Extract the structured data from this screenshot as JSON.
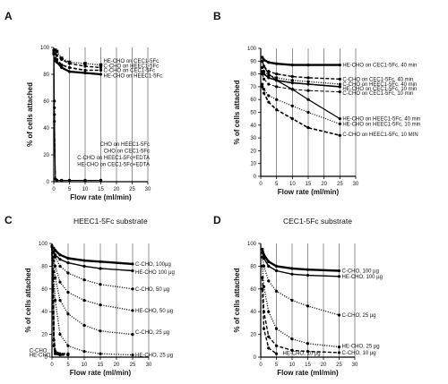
{
  "figure": {
    "panels": [
      "A",
      "B",
      "C",
      "D"
    ]
  },
  "chart_data": [
    {
      "id": "A",
      "type": "line",
      "letter": "A",
      "title": "",
      "xlabel": "Flow rate (ml/min)",
      "ylabel": "% of cells attached",
      "xlim": [
        0,
        30
      ],
      "ylim": [
        0,
        100
      ],
      "xticks": [
        0,
        5,
        10,
        15,
        20,
        25,
        30
      ],
      "yticks": [
        0,
        20,
        40,
        60,
        80,
        100
      ],
      "grid": "vertical",
      "series": [
        {
          "name": "HE-CHO on CEC1-5Fc",
          "style": "dotted",
          "marker": "square",
          "width": 1.4,
          "x": [
            0.5,
            1,
            2.5,
            5,
            10,
            15
          ],
          "y": [
            98,
            97,
            92,
            89,
            88,
            87
          ],
          "label_y": 90
        },
        {
          "name": "C-CHO on HEEC1-5Fc",
          "style": "dashed",
          "marker": "circle",
          "width": 1.4,
          "x": [
            0.5,
            1,
            2.5,
            5,
            10,
            15
          ],
          "y": [
            95,
            94,
            91,
            88,
            86,
            85
          ],
          "label_y": 86.5
        },
        {
          "name": "C-CHO on CEC1-5Fc",
          "style": "dashed",
          "marker": "circle",
          "width": 1.6,
          "x": [
            0.5,
            1,
            2.5,
            5,
            10,
            15
          ],
          "y": [
            92,
            91,
            87,
            85,
            83,
            83
          ],
          "label_y": 83
        },
        {
          "name": "HE-CHO on HEEC1-5Fc",
          "style": "solid",
          "marker": "circle",
          "width": 2.2,
          "x": [
            0.5,
            1,
            2.5,
            5,
            10,
            15
          ],
          "y": [
            90,
            89,
            85,
            82,
            81,
            80
          ],
          "label_y": 79
        },
        {
          "name": "CHO on HEEC1-5Fc",
          "style": "dotted",
          "marker": "circle",
          "width": 1,
          "x": [
            0,
            0.2,
            0.5,
            1,
            2.5,
            5,
            10,
            15
          ],
          "y": [
            98,
            60,
            2,
            1,
            1,
            1,
            1,
            1
          ],
          "label_y": 28
        },
        {
          "name": "CHO on CEC1-5Fc",
          "style": "dashed",
          "marker": "circle",
          "width": 1,
          "x": [
            0,
            0.2,
            0.5,
            1,
            2.5,
            5,
            10,
            15
          ],
          "y": [
            97,
            55,
            2,
            1,
            1,
            1,
            1,
            1
          ],
          "label_y": 23
        },
        {
          "name": "C-CHO on HEEC1-5Fc+EDTA",
          "style": "dashed",
          "marker": "circle",
          "width": 1,
          "x": [
            0,
            0.2,
            0.5,
            1,
            2.5,
            5,
            10,
            15
          ],
          "y": [
            96,
            50,
            2,
            1,
            1,
            1,
            1,
            1
          ],
          "label_y": 18
        },
        {
          "name": "HE-CHO on CEC1-5Fc+EDTA",
          "style": "solid",
          "marker": "circle",
          "width": 1,
          "x": [
            0,
            0.2,
            0.5,
            1,
            2.5,
            5,
            10,
            15
          ],
          "y": [
            95,
            45,
            2,
            1,
            1,
            1,
            1,
            1
          ],
          "label_y": 13
        }
      ]
    },
    {
      "id": "B",
      "type": "line",
      "letter": "B",
      "title": "",
      "xlabel": "Flow rate (ml/min)",
      "ylabel": "% of cells attached",
      "xlim": [
        0,
        30
      ],
      "ylim": [
        0,
        100
      ],
      "xticks": [
        0,
        5,
        10,
        15,
        20,
        25,
        30
      ],
      "yticks": [
        0,
        10,
        20,
        30,
        40,
        50,
        60,
        70,
        80,
        90,
        100
      ],
      "grid": "vertical",
      "series": [
        {
          "name": "HE-CHO on CEC1-5Fc, 40 min",
          "style": "solid",
          "marker": "circle",
          "width": 2.4,
          "x": [
            0.5,
            1,
            2.5,
            5,
            10,
            15,
            25
          ],
          "y": [
            93,
            91,
            89,
            88,
            87,
            87,
            87
          ],
          "label_y": 87
        },
        {
          "name": "C-CHO on CEC1-5Fc, 40 min",
          "style": "dashed",
          "marker": "circle",
          "width": 1.4,
          "x": [
            0.5,
            1,
            2.5,
            5,
            10,
            15,
            25
          ],
          "y": [
            90,
            86,
            82,
            80,
            78,
            77,
            76
          ],
          "label_y": 76
        },
        {
          "name": "C-CHO on HEEC1-5Fc, 40 min",
          "style": "dotted",
          "marker": "circle",
          "width": 1.4,
          "x": [
            0.5,
            1,
            2.5,
            5,
            10,
            15,
            25
          ],
          "y": [
            85,
            82,
            79,
            77,
            75,
            74,
            72
          ],
          "label_y": 72
        },
        {
          "name": "HE-CHO on CEC1-5Fc, 10 min",
          "style": "solid",
          "marker": "circle",
          "width": 1.6,
          "x": [
            0.5,
            1,
            2.5,
            5,
            10,
            15,
            25
          ],
          "y": [
            82,
            80,
            77,
            75,
            73,
            72,
            70
          ],
          "label_y": 68.5
        },
        {
          "name": "C-CHO on CEC1-5Fc, 10 min",
          "style": "dashed",
          "marker": "circle",
          "width": 1,
          "x": [
            0.5,
            1,
            2.5,
            5,
            10,
            15,
            25
          ],
          "y": [
            80,
            76,
            72,
            70,
            68,
            67,
            66
          ],
          "label_y": 65
        },
        {
          "name": "HE-CHO on HEEC1-5Fc, 40 min",
          "style": "solid",
          "marker": "circle",
          "width": 1.2,
          "x": [
            0.5,
            1,
            2.5,
            5,
            10,
            15,
            25
          ],
          "y": [
            90,
            86,
            80,
            75,
            68,
            60,
            45
          ],
          "label_y": 45
        },
        {
          "name": "HE-CHO on HEEC1-5Fc, 10 min",
          "style": "dotted",
          "marker": "circle",
          "width": 1.2,
          "x": [
            0.5,
            1,
            2.5,
            5,
            10,
            15,
            25
          ],
          "y": [
            72,
            68,
            63,
            60,
            55,
            50,
            41
          ],
          "label_y": 41
        },
        {
          "name": "C-CHO on HEEC1-5Fc, 10 MIN",
          "style": "dashed",
          "marker": "circle",
          "width": 1.6,
          "x": [
            0.5,
            1,
            2.5,
            5,
            10,
            15,
            25
          ],
          "y": [
            70,
            65,
            58,
            52,
            45,
            38,
            32
          ],
          "label_y": 33
        }
      ]
    },
    {
      "id": "C",
      "type": "line",
      "letter": "C",
      "title": "HEEC1-5Fc substrate",
      "xlabel": "Flow rate (ml/min)",
      "ylabel": "% of cells attached",
      "xlim": [
        0,
        30
      ],
      "ylim": [
        0,
        100
      ],
      "xticks": [
        0,
        5,
        10,
        15,
        20,
        25,
        30
      ],
      "yticks": [
        0,
        20,
        40,
        60,
        80,
        100
      ],
      "grid": "vertical",
      "series": [
        {
          "name": "C-CHO, 100µg",
          "style": "solid",
          "marker": "circle",
          "width": 2.4,
          "x": [
            0.5,
            1,
            2.5,
            5,
            10,
            15,
            25
          ],
          "y": [
            96,
            94,
            90,
            87,
            85,
            84,
            82
          ],
          "label_y": 82
        },
        {
          "name": "HE-CHO 100 µg",
          "style": "solid",
          "marker": "circle",
          "width": 1.4,
          "x": [
            0.5,
            1,
            2.5,
            5,
            10,
            15,
            25
          ],
          "y": [
            93,
            90,
            86,
            83,
            80,
            78,
            76
          ],
          "label_y": 75
        },
        {
          "name": "C-CHO, 50 µg",
          "style": "dotted",
          "marker": "circle",
          "width": 1.4,
          "x": [
            0.5,
            1,
            2.5,
            5,
            10,
            15,
            25
          ],
          "y": [
            92,
            88,
            80,
            74,
            68,
            64,
            60
          ],
          "label_y": 60
        },
        {
          "name": "HE-CHO, 50 µg",
          "style": "dotted",
          "marker": "circle",
          "width": 1.4,
          "x": [
            0.5,
            1,
            2.5,
            5,
            10,
            15,
            25
          ],
          "y": [
            88,
            80,
            66,
            57,
            50,
            46,
            41
          ],
          "label_y": 41
        },
        {
          "name": "C-CHO, 25 µg",
          "style": "dotted",
          "marker": "circle",
          "width": 1.4,
          "x": [
            0.5,
            1,
            2.5,
            5,
            10,
            15,
            25
          ],
          "y": [
            85,
            70,
            50,
            38,
            28,
            23,
            20
          ],
          "label_y": 22
        },
        {
          "name": "HE-CHO, 25 µg",
          "style": "dotted",
          "marker": "circle",
          "width": 1.4,
          "x": [
            0.5,
            1,
            2.5,
            5,
            10,
            15,
            25
          ],
          "y": [
            75,
            50,
            20,
            10,
            5,
            3,
            2
          ],
          "label_y": 2
        },
        {
          "name": "C-CHO",
          "style": "dashed",
          "marker": "circle",
          "width": 2,
          "x": [
            0,
            0.3,
            0.6,
            1,
            2.5,
            5
          ],
          "y": [
            98,
            70,
            15,
            5,
            3,
            3
          ],
          "label_y": null,
          "text_x": -7,
          "text_y": 6
        },
        {
          "name": "HE-CHO",
          "style": "dashed",
          "marker": "circle",
          "width": 2,
          "x": [
            0,
            0.3,
            0.6,
            1,
            2.5,
            5
          ],
          "y": [
            97,
            60,
            10,
            3,
            2,
            2
          ],
          "label_y": null,
          "text_x": -7,
          "text_y": 2
        }
      ]
    },
    {
      "id": "D",
      "type": "line",
      "letter": "D",
      "title": "CEC1-5Fc substrate",
      "xlabel": "Flow rate (ml/min)",
      "ylabel": "% of cells attached",
      "xlim": [
        0,
        30
      ],
      "ylim": [
        0,
        100
      ],
      "xticks": [
        0,
        5,
        10,
        15,
        20,
        25,
        30
      ],
      "yticks": [
        0,
        20,
        40,
        60,
        80,
        100
      ],
      "grid": "vertical",
      "series": [
        {
          "name": "C-CHO, 100 µg",
          "style": "solid",
          "marker": "circle",
          "width": 2.4,
          "x": [
            0.5,
            1,
            2.5,
            5,
            10,
            15,
            25
          ],
          "y": [
            95,
            90,
            84,
            80,
            78,
            77,
            76
          ],
          "label_y": 76
        },
        {
          "name": "HE-CHO, 100 µg",
          "style": "solid",
          "marker": "circle",
          "width": 1.4,
          "x": [
            0.5,
            1,
            2.5,
            5,
            10,
            15,
            25
          ],
          "y": [
            92,
            87,
            80,
            76,
            73,
            72,
            71
          ],
          "label_y": 71
        },
        {
          "name": "C-CHO, 25 µg",
          "style": "dotted",
          "marker": "circle",
          "width": 1.4,
          "x": [
            0.5,
            1,
            2.5,
            5,
            10,
            15,
            25
          ],
          "y": [
            88,
            80,
            67,
            58,
            50,
            45,
            37
          ],
          "label_y": 37
        },
        {
          "name": "HE-CHO, 25 µg",
          "style": "dotted",
          "marker": "circle",
          "width": 1.4,
          "x": [
            0.5,
            1,
            2.5,
            5,
            10,
            15,
            25
          ],
          "y": [
            80,
            62,
            40,
            25,
            16,
            12,
            9
          ],
          "label_y": 10
        },
        {
          "name": "C-CHO, 10 µg",
          "style": "dashed",
          "marker": "circle",
          "width": 1.4,
          "x": [
            0.5,
            1,
            2.5,
            5,
            10,
            15,
            25
          ],
          "y": [
            70,
            40,
            18,
            10,
            6,
            5,
            4
          ],
          "label_y": 4
        },
        {
          "name": "HE-CHO, 10 µg",
          "style": "dashed",
          "marker": "circle",
          "width": 1.4,
          "x": [
            0.5,
            1,
            2.5,
            5
          ],
          "y": [
            60,
            25,
            8,
            3
          ],
          "label_y": null,
          "text_x": 7,
          "text_y": 3.5
        }
      ]
    }
  ]
}
